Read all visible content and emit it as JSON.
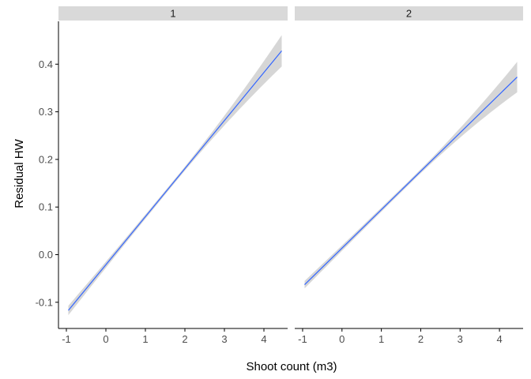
{
  "chart_data": {
    "type": "line",
    "xlabel": "Shoot count (m3)",
    "ylabel": "Residual HW",
    "xlim": [
      -1.2,
      4.6
    ],
    "ylim": [
      -0.155,
      0.49
    ],
    "x_ticks": [
      -1,
      0,
      1,
      2,
      3,
      4
    ],
    "y_ticks": [
      -0.1,
      0.0,
      0.1,
      0.2,
      0.3,
      0.4
    ],
    "x_tick_labels": [
      "-1",
      "0",
      "1",
      "2",
      "3",
      "4"
    ],
    "y_tick_labels": [
      "-0.1",
      "0.0",
      "0.1",
      "0.2",
      "0.3",
      "0.4"
    ],
    "grid": false,
    "facets": [
      {
        "label": "1",
        "x": [
          -0.95,
          4.45
        ],
        "fit": [
          -0.117,
          0.428
        ],
        "lower": [
          -0.127,
          0.395
        ],
        "upper": [
          -0.107,
          0.461
        ]
      },
      {
        "label": "2",
        "x": [
          -0.95,
          4.45
        ],
        "fit": [
          -0.063,
          0.373
        ],
        "lower": [
          -0.071,
          0.341
        ],
        "upper": [
          -0.055,
          0.405
        ]
      }
    ],
    "colors": {
      "line": "#3366FF",
      "ribbon": "#999999",
      "strip": "#D9D9D9",
      "axis": "#000000"
    }
  }
}
